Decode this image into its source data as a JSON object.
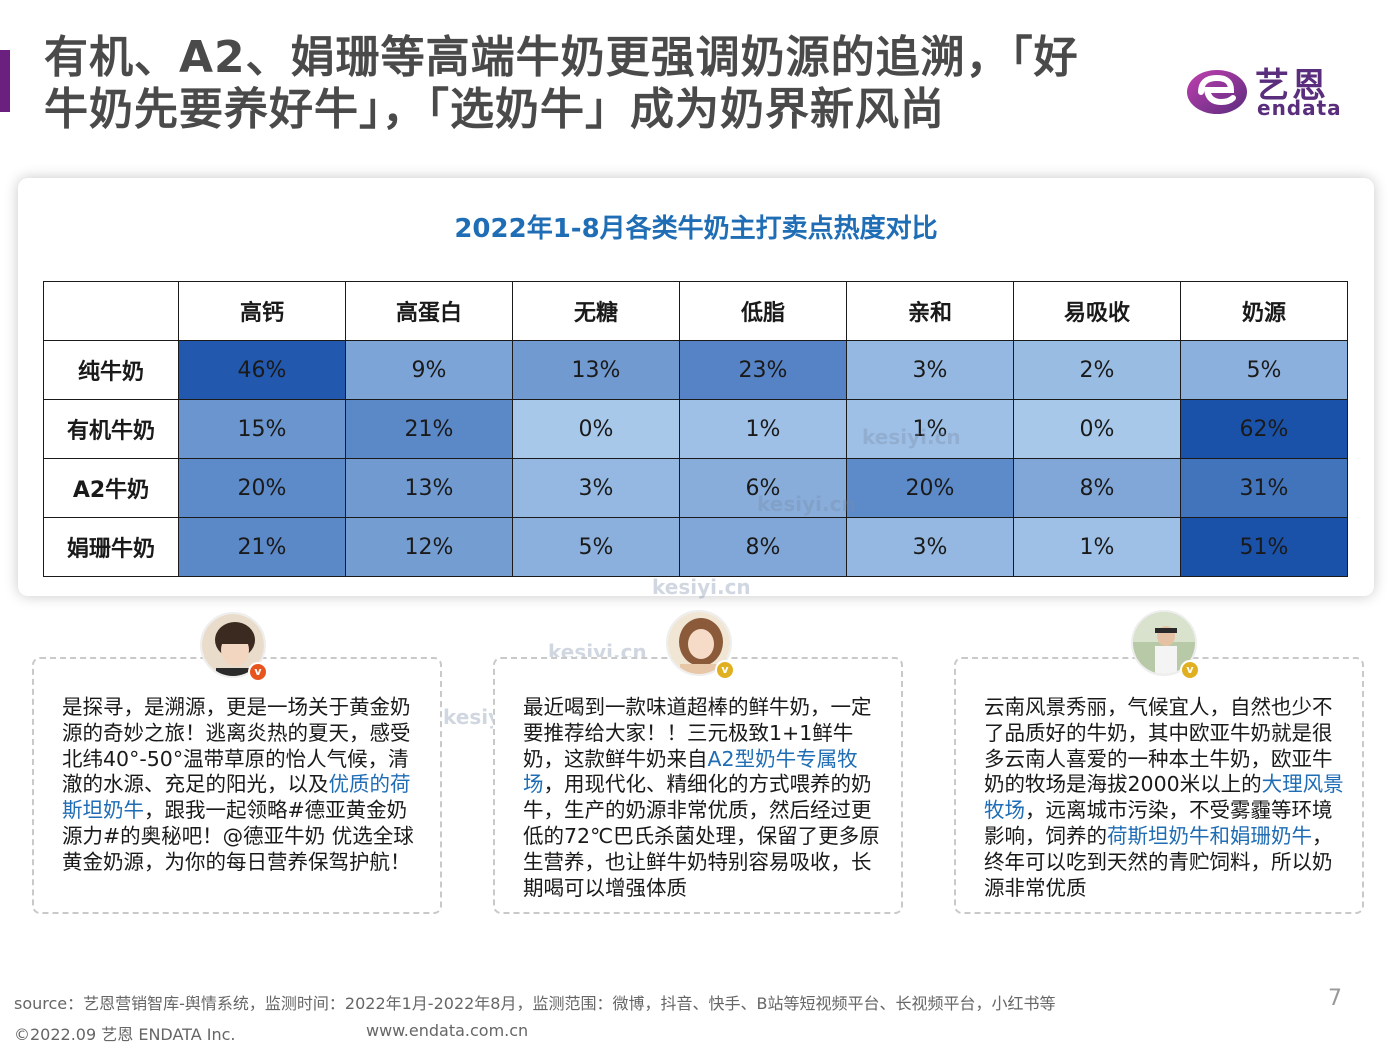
{
  "header": {
    "title_line1": "有机、A2、娟珊等高端牛奶更强调奶源的追溯，「好",
    "title_line2": "牛奶先要养好牛」，「选奶牛」成为奶界新风尚",
    "logo_cn": "艺恩",
    "logo_en": "endata",
    "accent_color": "#6b1f7e"
  },
  "chart_data": {
    "type": "heatmap",
    "title": "2022年1-8月各类牛奶主打卖点热度对比",
    "columns": [
      "高钙",
      "高蛋白",
      "无糖",
      "低脂",
      "亲和",
      "易吸收",
      "奶源"
    ],
    "rows": [
      {
        "name": "纯牛奶",
        "values": [
          "46%",
          "9%",
          "13%",
          "23%",
          "3%",
          "2%",
          "5%"
        ]
      },
      {
        "name": "有机牛奶",
        "values": [
          "15%",
          "21%",
          "0%",
          "1%",
          "1%",
          "0%",
          "62%"
        ]
      },
      {
        "name": "A2牛奶",
        "values": [
          "20%",
          "13%",
          "3%",
          "6%",
          "20%",
          "8%",
          "31%"
        ]
      },
      {
        "name": "娟珊牛奶",
        "values": [
          "21%",
          "12%",
          "5%",
          "8%",
          "3%",
          "1%",
          "51%"
        ]
      }
    ]
  },
  "watermark": "kesiyi.cn",
  "quotes": [
    {
      "badge": "v",
      "badge_color": "#e8541e",
      "t1": "是探寻，是溯源，更是一场关于黄金奶源的奇妙之旅！逃离炎热的夏天，感受北纬40°-50°温带草原的怡人气候，清澈的水源、充足的阳光，以及",
      "h1": "优质的荷斯坦奶牛",
      "t2": "，跟我一起领略#德亚黄金奶源力#的奥秘吧！@德亚牛奶 优选全球黄金奶源，为你的每日营养保驾护航！"
    },
    {
      "badge": "v",
      "badge_color": "#e0b020",
      "t1": "最近喝到一款味道超棒的鲜牛奶，一定要推荐给大家！！三元极致1+1鲜牛奶，这款鲜牛奶来自",
      "h1": "A2型奶牛专属牧场",
      "t2": "，用现代化、精细化的方式喂养的奶牛，生产的奶源非常优质，然后经过更低的72℃巴氏杀菌处理，保留了更多原生营养，也让鲜牛奶特别容易吸收，长期喝可以增强体质"
    },
    {
      "badge": "v",
      "badge_color": "#e0b020",
      "t1": "云南风景秀丽，气候宜人，自然也少不了品质好的牛奶，其中欧亚牛奶就是很多云南人喜爱的一种本土牛奶，欧亚牛奶的牧场是海拔2000米以上的",
      "h1": "大理风景牧场",
      "t2": "，远离城市污染，不受雾霾等环境影响，饲养的",
      "h2": "荷斯坦奶牛和娟珊奶牛",
      "t3": "，终年可以吃到天然的青贮饲料，所以奶源非常优质"
    }
  ],
  "footer": {
    "source": "source：艺恩营销智库-舆情系统，监测时间：2022年1月-2022年8月，监测范围：微博，抖音、快手、B站等短视频平台、长视频平台，小红书等",
    "page": "7",
    "copyright": "©2022.09 艺恩 ENDATA Inc.",
    "url": "www.endata.com.cn"
  }
}
